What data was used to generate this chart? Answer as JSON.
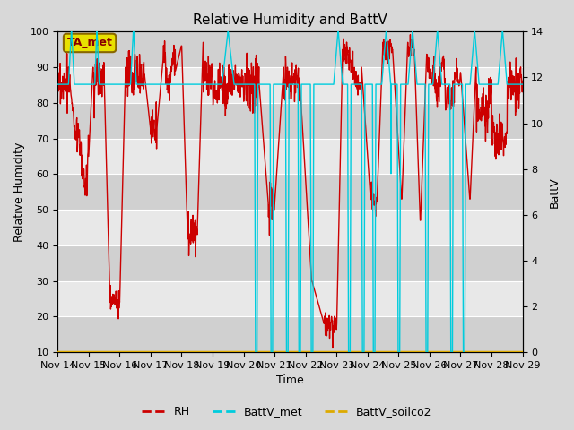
{
  "title": "Relative Humidity and BattV",
  "xlabel": "Time",
  "ylabel_left": "Relative Humidity",
  "ylabel_right": "BattV",
  "annotation": "TA_met",
  "annotation_facecolor": "#e8e000",
  "annotation_edgecolor": "#886600",
  "annotation_textcolor": "#880000",
  "x_tick_labels": [
    "Nov 14",
    "Nov 15",
    "Nov 16",
    "Nov 17",
    "Nov 18",
    "Nov 19",
    "Nov 20",
    "Nov 21",
    "Nov 22",
    "Nov 23",
    "Nov 24",
    "Nov 25",
    "Nov 26",
    "Nov 27",
    "Nov 28",
    "Nov 29"
  ],
  "ylim_left": [
    10,
    100
  ],
  "ylim_right": [
    0,
    14
  ],
  "yticks_left": [
    10,
    20,
    30,
    40,
    50,
    60,
    70,
    80,
    90,
    100
  ],
  "yticks_right": [
    0,
    2,
    4,
    6,
    8,
    10,
    12,
    14
  ],
  "rh_color": "#cc0000",
  "battv_met_color": "#00ccdd",
  "battv_soilco2_color": "#ddaa00",
  "fig_facecolor": "#d8d8d8",
  "plot_facecolor": "#e8e8e8",
  "band_light": "#e8e8e8",
  "band_dark": "#d0d0d0",
  "grid_color": "#ffffff",
  "legend_items": [
    "RH",
    "BattV_met",
    "BattV_soilco2"
  ],
  "legend_colors": [
    "#cc0000",
    "#00ccdd",
    "#ddaa00"
  ],
  "title_fontsize": 11,
  "axis_label_fontsize": 9,
  "tick_fontsize": 8,
  "legend_fontsize": 9
}
